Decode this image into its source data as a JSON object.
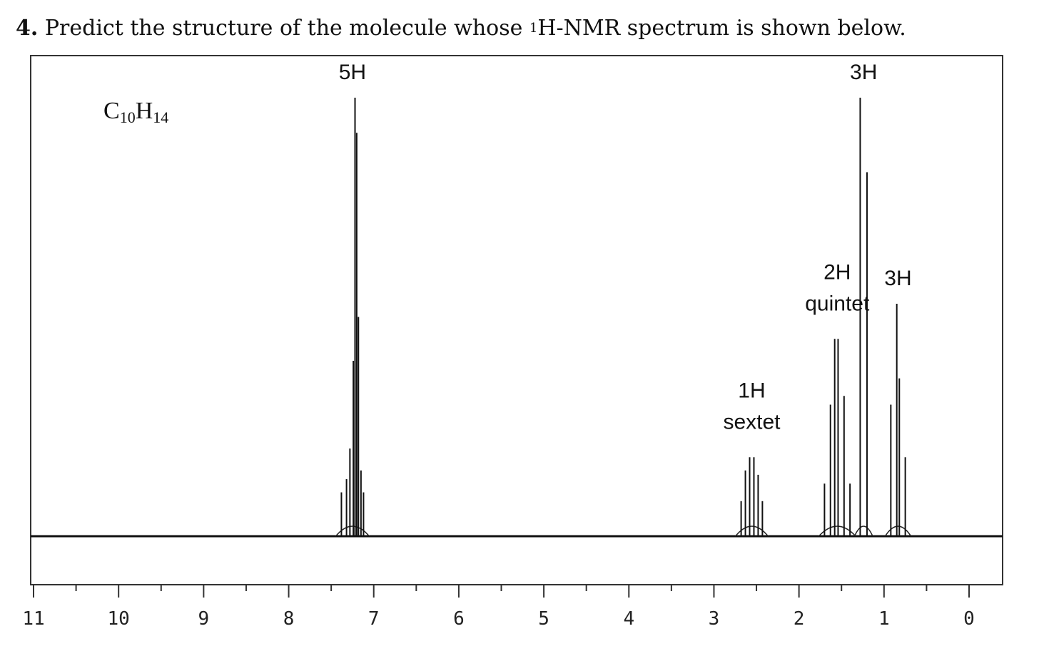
{
  "question": {
    "number": "4.",
    "text_before": "Predict the structure of the molecule whose ",
    "sup": "1",
    "text_after": "H-NMR spectrum is shown below."
  },
  "chart_data": {
    "type": "line",
    "formula": {
      "c": "C",
      "c_sub": "10",
      "h": "H",
      "h_sub": "14"
    },
    "x_axis": {
      "ticks": [
        11,
        10,
        9,
        8,
        7,
        6,
        5,
        4,
        3,
        2,
        1,
        0
      ],
      "range": [
        11,
        0
      ]
    },
    "peaks": [
      {
        "center": 7.22,
        "integration": "5H",
        "multiplicity": "",
        "lines": [
          [
            7.38,
            0.1
          ],
          [
            7.32,
            0.13
          ],
          [
            7.28,
            0.2
          ],
          [
            7.24,
            0.4
          ],
          [
            7.22,
            1.0
          ],
          [
            7.2,
            0.92
          ],
          [
            7.18,
            0.5
          ],
          [
            7.15,
            0.15
          ],
          [
            7.12,
            0.1
          ]
        ]
      },
      {
        "center": 2.58,
        "integration": "1H",
        "multiplicity": "sextet",
        "lines": [
          [
            2.68,
            0.08
          ],
          [
            2.63,
            0.15
          ],
          [
            2.58,
            0.18
          ],
          [
            2.53,
            0.18
          ],
          [
            2.48,
            0.14
          ],
          [
            2.43,
            0.08
          ]
        ]
      },
      {
        "center": 1.58,
        "integration": "2H",
        "multiplicity": "quintet",
        "lines": [
          [
            1.7,
            0.12
          ],
          [
            1.63,
            0.3
          ],
          [
            1.58,
            0.45
          ],
          [
            1.54,
            0.45
          ],
          [
            1.47,
            0.32
          ],
          [
            1.4,
            0.12
          ]
        ]
      },
      {
        "center": 1.25,
        "integration": "3H",
        "multiplicity": "",
        "lines": [
          [
            1.28,
            1.0
          ],
          [
            1.2,
            0.83
          ]
        ]
      },
      {
        "center": 0.85,
        "integration": "3H",
        "multiplicity": "",
        "lines": [
          [
            0.92,
            0.3
          ],
          [
            0.85,
            0.53
          ],
          [
            0.82,
            0.36
          ],
          [
            0.75,
            0.18
          ]
        ]
      }
    ],
    "baseline": 0
  }
}
